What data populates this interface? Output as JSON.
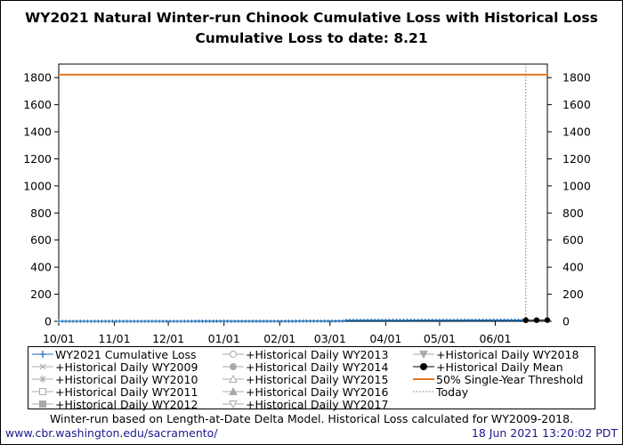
{
  "title_line1": "WY2021 Natural Winter-run Chinook Cumulative Loss with Historical Loss",
  "title_line2": "Cumulative Loss to date: 8.21",
  "footnote": "Winter-run based on Length-at-Date Delta Model. Historical Loss calculated for WY2009-2018.",
  "url": "www.cbr.washington.edu/sacramento/",
  "timestamp": "18 Jun 2021 13:20:02 PDT",
  "legend": [
    {
      "label": "WY2021 Cumulative Loss",
      "color": "#1f6fb4",
      "marker": "plus",
      "line": "solid"
    },
    {
      "label": "+Historical Daily WY2009",
      "color": "#aaaaaa",
      "marker": "x",
      "line": "solid"
    },
    {
      "label": "+Historical Daily WY2010",
      "color": "#aaaaaa",
      "marker": "star",
      "line": "solid"
    },
    {
      "label": "+Historical Daily WY2011",
      "color": "#aaaaaa",
      "marker": "square",
      "line": "solid"
    },
    {
      "label": "+Historical Daily WY2012",
      "color": "#aaaaaa",
      "marker": "filled-square",
      "line": "solid"
    },
    {
      "label": "+Historical Daily WY2013",
      "color": "#aaaaaa",
      "marker": "circle",
      "line": "solid"
    },
    {
      "label": "+Historical Daily WY2014",
      "color": "#aaaaaa",
      "marker": "filled-circle",
      "line": "solid"
    },
    {
      "label": "+Historical Daily WY2015",
      "color": "#aaaaaa",
      "marker": "triangle",
      "line": "solid"
    },
    {
      "label": "+Historical Daily WY2016",
      "color": "#aaaaaa",
      "marker": "filled-triangle",
      "line": "solid"
    },
    {
      "label": "+Historical Daily WY2017",
      "color": "#aaaaaa",
      "marker": "triangle-down",
      "line": "solid"
    },
    {
      "label": "+Historical Daily WY2018",
      "color": "#aaaaaa",
      "marker": "filled-triangle-down",
      "line": "solid"
    },
    {
      "label": "+Historical Daily Mean",
      "color": "#000000",
      "marker": "filled-circle",
      "line": "solid"
    },
    {
      "label": "50% Single-Year Threshold",
      "color": "#e87722",
      "marker": "none",
      "line": "solid"
    },
    {
      "label": "Today",
      "color": "#777777",
      "marker": "none",
      "line": "dotted"
    }
  ],
  "chart_data": {
    "type": "line",
    "title": "WY2021 Natural Winter-run Chinook Cumulative Loss with Historical Loss",
    "subtitle": "Cumulative Loss to date: 8.21",
    "xlabel": "",
    "ylabel": "",
    "x_ticks": [
      "10/01",
      "11/01",
      "12/01",
      "01/01",
      "02/01",
      "03/01",
      "04/01",
      "05/01",
      "06/01"
    ],
    "x_range": [
      "2020-10-01",
      "2021-06-30"
    ],
    "ylim": [
      0,
      1900
    ],
    "y_ticks": [
      0,
      200,
      400,
      600,
      800,
      1000,
      1200,
      1400,
      1600,
      1800
    ],
    "right_axis_mirrors_left": true,
    "grid": false,
    "legend_position": "below",
    "series": [
      {
        "name": "WY2021 Cumulative Loss",
        "color": "#1f6fb4",
        "points": [
          {
            "x": "2020-10-01",
            "y": 0
          },
          {
            "x": "2020-11-15",
            "y": 0
          },
          {
            "x": "2020-12-15",
            "y": 0.5
          },
          {
            "x": "2021-01-15",
            "y": 0.5
          },
          {
            "x": "2021-02-10",
            "y": 1.5
          },
          {
            "x": "2021-03-01",
            "y": 2
          },
          {
            "x": "2021-03-08",
            "y": 3
          },
          {
            "x": "2021-03-10",
            "y": 7
          },
          {
            "x": "2021-04-15",
            "y": 7.5
          },
          {
            "x": "2021-05-15",
            "y": 8
          },
          {
            "x": "2021-06-18",
            "y": 8.21
          }
        ]
      },
      {
        "name": "50% Single-Year Threshold",
        "color": "#e87722",
        "points": [
          {
            "x": "2020-10-01",
            "y": 1822
          },
          {
            "x": "2021-06-30",
            "y": 1822
          }
        ]
      },
      {
        "name": "+Historical Daily Mean",
        "color": "#000000",
        "points": [
          {
            "x": "2021-06-18",
            "y": 8.21
          },
          {
            "x": "2021-06-24",
            "y": 8.5
          },
          {
            "x": "2021-06-30",
            "y": 8.8
          }
        ]
      }
    ],
    "today": "2021-06-18"
  }
}
